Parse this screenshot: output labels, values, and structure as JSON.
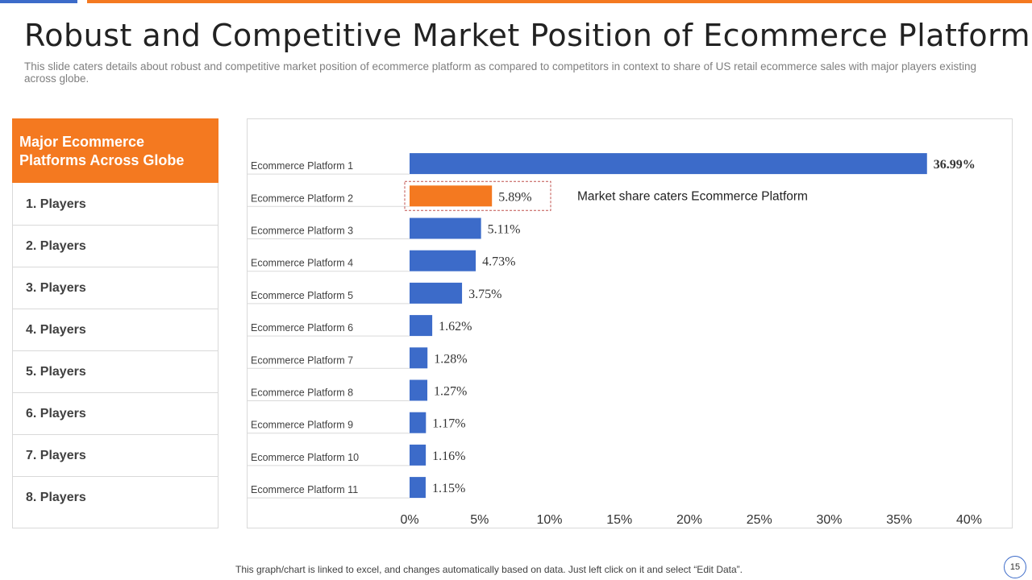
{
  "slide": {
    "title": "Robust and Competitive Market Position of Ecommerce Platform",
    "subtitle": "This slide caters details about robust and competitive market position of ecommerce platform as compared to competitors in context to share of US retail ecommerce sales with major players existing across globe.",
    "footer": "This graph/chart is linked to excel, and changes automatically based on data. Just left click on it and select “Edit Data”.",
    "page_number": "15"
  },
  "panel": {
    "heading": "Major Ecommerce Platforms Across Globe",
    "items": [
      "1. Players",
      "2. Players",
      "3. Players",
      "4. Players",
      "5. Players",
      "6. Players",
      "7. Players",
      "8. Players"
    ]
  },
  "colors": {
    "accent": "#f47920",
    "bar": "#3c6bc9",
    "highlight": "#f47920"
  },
  "chart_data": {
    "type": "bar",
    "orientation": "horizontal",
    "categories": [
      "Ecommerce Platform 1",
      "Ecommerce Platform 2",
      "Ecommerce Platform 3",
      "Ecommerce Platform 4",
      "Ecommerce Platform 5",
      "Ecommerce Platform 6",
      "Ecommerce Platform 7",
      "Ecommerce Platform 8",
      "Ecommerce Platform 9",
      "Ecommerce Platform 10",
      "Ecommerce Platform 11"
    ],
    "values": [
      36.99,
      5.89,
      5.11,
      4.73,
      3.75,
      1.62,
      1.28,
      1.27,
      1.17,
      1.16,
      1.15
    ],
    "data_labels": [
      "36.99%",
      "5.89%",
      "5.11%",
      "4.73%",
      "3.75%",
      "1.62%",
      "1.28%",
      "1.27%",
      "1.17%",
      "1.16%",
      "1.15%"
    ],
    "highlight_index": 1,
    "xlim": [
      0,
      40
    ],
    "x_ticks": [
      "0%",
      "5%",
      "10%",
      "15%",
      "20%",
      "25%",
      "30%",
      "35%",
      "40%"
    ],
    "annotation": "Market share caters Ecommerce Platform"
  }
}
